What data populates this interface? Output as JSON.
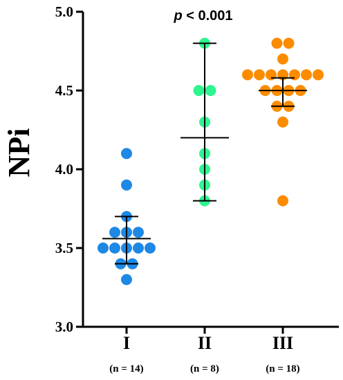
{
  "chart_data": {
    "type": "scatter",
    "ylabel": "NPi",
    "ylim": [
      3.0,
      5.0
    ],
    "yticks": [
      "3.0",
      "3.5",
      "4.0",
      "4.5",
      "5.0"
    ],
    "annotation": {
      "italic": "p",
      "rest": " < 0.001"
    },
    "categories": [
      "I",
      "II",
      "III"
    ],
    "group_counts": [
      "(n = 14)",
      "(n = 8)",
      "(n = 18)"
    ],
    "colors": [
      "#1e88e5",
      "#2ef58f",
      "#fb8c00"
    ],
    "series": [
      {
        "values": [
          4.1,
          3.9,
          3.7,
          3.6,
          3.6,
          3.6,
          3.5,
          3.5,
          3.5,
          3.5,
          3.5,
          3.4,
          3.4,
          3.3
        ],
        "mean": 3.56,
        "sd_low": 3.4,
        "sd_high": 3.7
      },
      {
        "values": [
          4.8,
          4.5,
          4.5,
          4.3,
          4.1,
          4.0,
          3.9,
          3.8
        ],
        "mean": 4.2,
        "sd_low": 3.8,
        "sd_high": 4.8
      },
      {
        "values": [
          4.8,
          4.8,
          4.7,
          4.6,
          4.6,
          4.6,
          4.6,
          4.6,
          4.6,
          4.6,
          4.5,
          4.5,
          4.5,
          4.4,
          4.4,
          4.3,
          3.8,
          4.5
        ],
        "mean": 4.5,
        "sd_low": 4.4,
        "sd_high": 4.58
      }
    ]
  }
}
